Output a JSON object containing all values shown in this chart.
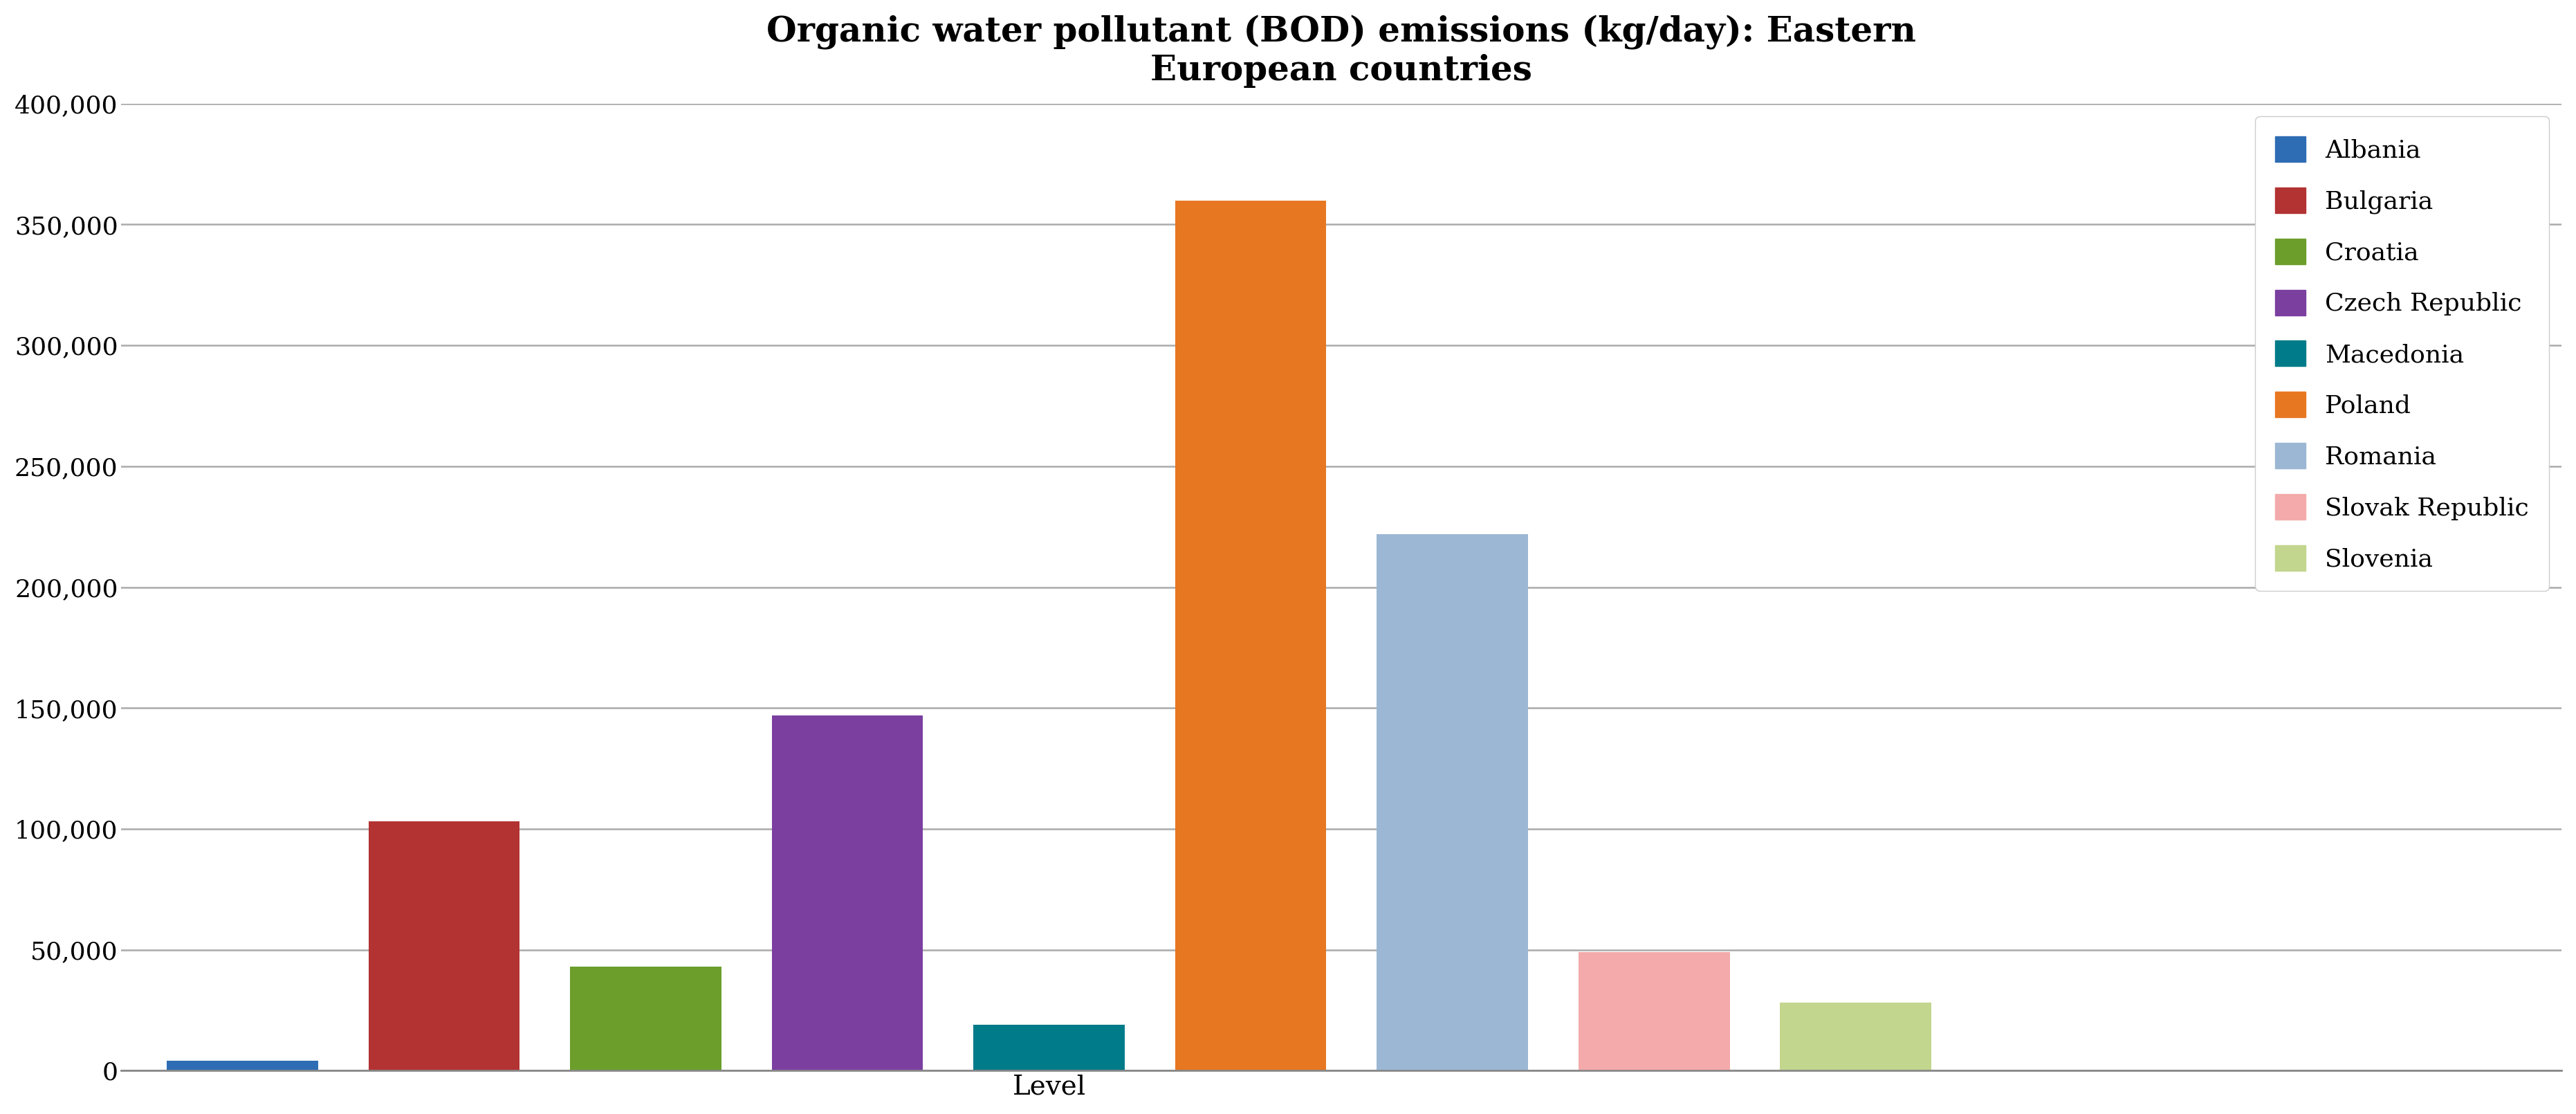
{
  "title": "Organic water pollutant (BOD) emissions (kg/day): Eastern\nEuropean countries",
  "xlabel": "Level",
  "countries": [
    "Albania",
    "Bulgaria",
    "Croatia",
    "Czech Republic",
    "Macedonia",
    "Poland",
    "Romania",
    "Slovak Republic",
    "Slovenia"
  ],
  "values": [
    4000,
    103000,
    43000,
    147000,
    19000,
    360000,
    222000,
    49000,
    28000
  ],
  "colors": [
    "#2E6DB4",
    "#B33232",
    "#6B9E2B",
    "#7B3FA0",
    "#007B8A",
    "#E87722",
    "#9BB7D4",
    "#F4AAAA",
    "#C2D68E"
  ],
  "ylim": [
    0,
    400000
  ],
  "yticks": [
    0,
    50000,
    100000,
    150000,
    200000,
    250000,
    300000,
    350000,
    400000
  ],
  "background_color": "#FFFFFF",
  "title_fontsize": 36,
  "legend_fontsize": 26,
  "tick_fontsize": 26,
  "xlabel_fontsize": 28
}
